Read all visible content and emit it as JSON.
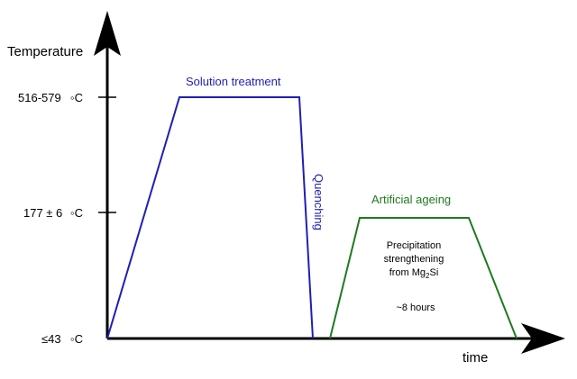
{
  "axes": {
    "y_label": "Temperature",
    "x_label": "time",
    "ticks": {
      "high": {
        "value": "516-579",
        "unit": "◦C"
      },
      "mid": {
        "value": "177 ± 6",
        "unit": "◦C"
      },
      "low": {
        "value": "≤43",
        "unit": "◦C"
      }
    }
  },
  "phases": {
    "solution": {
      "label": "Solution treatment",
      "color": "#1f1fb4"
    },
    "quenching": {
      "label": "Quenching",
      "color": "#1f1fb4"
    },
    "ageing": {
      "label": "Artificial ageing",
      "color": "#1f7a1f",
      "notes": {
        "line1": "Precipitation",
        "line2": "strengthening",
        "line3_prefix": "from Mg",
        "line3_sub": "2",
        "line3_suffix": "Si",
        "duration": "~8 hours"
      }
    }
  },
  "colors": {
    "axis": "#000000"
  }
}
